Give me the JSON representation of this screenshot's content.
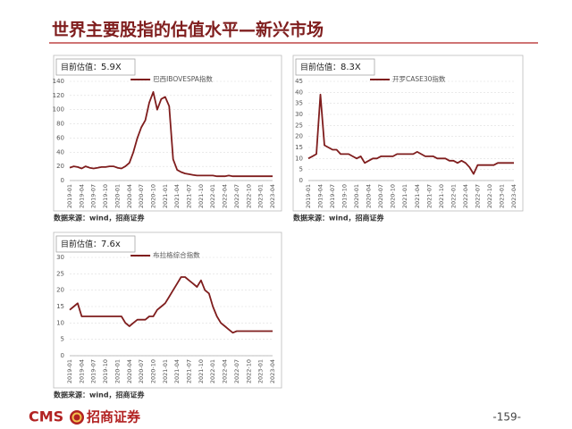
{
  "header": {
    "title": "世界主要股指的估值水平—新兴市场"
  },
  "chart_data": [
    {
      "type": "line",
      "annotation_label": "目前估值：",
      "annotation_value": "5.9X",
      "source": "数据来源：wind，招商证券",
      "grid": true,
      "categories": [
        "2019-01",
        null,
        null,
        "2019-04",
        null,
        null,
        "2019-07",
        null,
        null,
        "2019-10",
        null,
        null,
        "2020-01",
        null,
        null,
        "2020-04",
        null,
        null,
        "2020-07",
        null,
        null,
        "2020-10",
        null,
        null,
        "2021-01",
        null,
        null,
        "2021-04",
        null,
        null,
        "2021-07",
        null,
        null,
        "2021-10",
        null,
        null,
        "2022-01",
        null,
        null,
        "2022-04",
        null,
        null,
        "2022-07",
        null,
        null,
        "2022-10",
        null,
        null,
        "2023-01",
        null,
        null,
        "2023-04"
      ],
      "series": [
        {
          "name": "巴西IBOVESPA指数",
          "color": "#7f1d1d",
          "values": [
            18,
            20,
            19,
            17,
            20,
            18,
            17,
            18,
            19,
            19,
            20,
            20,
            18,
            17,
            20,
            25,
            40,
            60,
            75,
            85,
            110,
            125,
            100,
            115,
            118,
            105,
            30,
            15,
            12,
            10,
            9,
            8,
            7,
            7,
            7,
            7,
            7,
            6,
            6,
            6,
            7,
            6,
            6,
            6,
            6,
            6,
            6,
            6,
            6,
            6,
            6,
            6
          ]
        }
      ],
      "ylim": [
        0,
        140
      ],
      "yticks": [
        0,
        20,
        40,
        60,
        80,
        100,
        120,
        140
      ]
    },
    {
      "type": "line",
      "annotation_label": "目前估值：",
      "annotation_value": "8.3X",
      "source": "数据来源：wind，招商证券",
      "grid": true,
      "categories": [
        "2019-01",
        null,
        null,
        "2019-04",
        null,
        null,
        "2019-07",
        null,
        null,
        "2019-10",
        null,
        null,
        "2020-01",
        null,
        null,
        "2020-04",
        null,
        null,
        "2020-07",
        null,
        null,
        "2020-10",
        null,
        null,
        "2021-01",
        null,
        null,
        "2021-04",
        null,
        null,
        "2021-07",
        null,
        null,
        "2021-10",
        null,
        null,
        "2022-01",
        null,
        null,
        "2022-04",
        null,
        null,
        "2022-07",
        null,
        null,
        "2022-10",
        null,
        null,
        "2023-01",
        null,
        null,
        "2023-04"
      ],
      "series": [
        {
          "name": "开罗CASE30指数",
          "color": "#7f1d1d",
          "values": [
            10,
            11,
            12,
            39,
            16,
            15,
            14,
            14,
            12,
            12,
            12,
            11,
            10,
            11,
            8,
            9,
            10,
            10,
            11,
            11,
            11,
            11,
            12,
            12,
            12,
            12,
            12,
            13,
            12,
            11,
            11,
            11,
            10,
            10,
            10,
            9,
            9,
            8,
            9,
            8,
            6,
            3,
            7,
            7,
            7,
            7,
            7,
            8,
            8,
            8,
            8,
            8
          ]
        }
      ],
      "ylim": [
        0,
        45
      ],
      "yticks": [
        0,
        5,
        10,
        15,
        20,
        25,
        30,
        35,
        40,
        45
      ]
    },
    {
      "type": "line",
      "annotation_label": "目前估值：",
      "annotation_value": "7.6x",
      "source": "数据来源：wind，招商证券",
      "grid": true,
      "categories": [
        "2019-01",
        null,
        null,
        "2019-04",
        null,
        null,
        "2019-07",
        null,
        null,
        "2019-10",
        null,
        null,
        "2020-01",
        null,
        null,
        "2020-04",
        null,
        null,
        "2020-07",
        null,
        null,
        "2020-10",
        null,
        null,
        "2021-01",
        null,
        null,
        "2021-04",
        null,
        null,
        "2021-07",
        null,
        null,
        "2021-10",
        null,
        null,
        "2022-01",
        null,
        null,
        "2022-04",
        null,
        null,
        "2022-07",
        null,
        null,
        "2022-10",
        null,
        null,
        "2023-01",
        null,
        null,
        "2023-04"
      ],
      "series": [
        {
          "name": "布拉格综合指数",
          "color": "#7f1d1d",
          "values": [
            14,
            15,
            16,
            12,
            12,
            12,
            12,
            12,
            12,
            12,
            12,
            12,
            12,
            12,
            10,
            9,
            10,
            11,
            11,
            11,
            12,
            12,
            14,
            15,
            16,
            18,
            20,
            22,
            24,
            24,
            23,
            22,
            21,
            23,
            20,
            19,
            15,
            12,
            10,
            9,
            8,
            7,
            7.5,
            7.5,
            7.5,
            7.5,
            7.5,
            7.5,
            7.5,
            7.5,
            7.5,
            7.5
          ]
        }
      ],
      "ylim": [
        0,
        30
      ],
      "yticks": [
        0,
        5,
        10,
        15,
        20,
        25,
        30
      ]
    }
  ],
  "footer": {
    "logo_text": "CMS",
    "logo_name": "招商证券",
    "page_number": "-159-"
  }
}
